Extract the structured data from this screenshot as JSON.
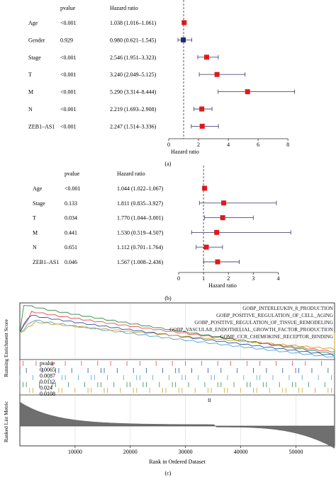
{
  "chart_data": [
    {
      "type": "forest",
      "panel_label": "(a)",
      "columns": [
        "pvalue",
        "Hazard ratio"
      ],
      "rows": [
        {
          "label": "Age",
          "pvalue": "<0.001",
          "hr_text": "1.038 (1.016–1.061)",
          "hr": 1.038,
          "lo": 1.016,
          "hi": 1.061,
          "color": "#e0191c"
        },
        {
          "label": "Gender",
          "pvalue": "0.929",
          "hr_text": "0.980 (0.621–1.545)",
          "hr": 0.98,
          "lo": 0.621,
          "hi": 1.545,
          "color": "#1b2a7a"
        },
        {
          "label": "Stage",
          "pvalue": "<0.001",
          "hr_text": "2.546 (1.951–3.323)",
          "hr": 2.546,
          "lo": 1.951,
          "hi": 3.323,
          "color": "#e0191c"
        },
        {
          "label": "T",
          "pvalue": "<0.001",
          "hr_text": "3.240 (2.049–5.125)",
          "hr": 3.24,
          "lo": 2.049,
          "hi": 5.125,
          "color": "#e0191c"
        },
        {
          "label": "M",
          "pvalue": "<0.001",
          "hr_text": "5.290 (3.314–8.444)",
          "hr": 5.29,
          "lo": 3.314,
          "hi": 8.444,
          "color": "#e0191c"
        },
        {
          "label": "N",
          "pvalue": "<0.001",
          "hr_text": "2.219 (1.693–2.908)",
          "hr": 2.219,
          "lo": 1.693,
          "hi": 2.908,
          "color": "#e0191c"
        },
        {
          "label": "ZEB1–AS1",
          "pvalue": "<0.001",
          "hr_text": "2.247 (1.514–3.336)",
          "hr": 2.247,
          "lo": 1.514,
          "hi": 3.336,
          "color": "#e0191c"
        }
      ],
      "xlim": [
        0,
        8.8
      ],
      "xticks": [
        0,
        2,
        4,
        6,
        8
      ],
      "ref_line": 1,
      "xlabel": "Hazard ratio"
    },
    {
      "type": "forest",
      "panel_label": "(b)",
      "columns": [
        "pvalue",
        "Hazard ratio"
      ],
      "rows": [
        {
          "label": "Age",
          "pvalue": "<0.001",
          "hr_text": "1.044 (1.022–1.067)",
          "hr": 1.044,
          "lo": 1.022,
          "hi": 1.067,
          "color": "#e0191c"
        },
        {
          "label": "Stage",
          "pvalue": "0.133",
          "hr_text": "1.811 (0.835–3.927)",
          "hr": 1.811,
          "lo": 0.835,
          "hi": 3.927,
          "color": "#e0191c"
        },
        {
          "label": "T",
          "pvalue": "0.034",
          "hr_text": "1.770 (1.044–3.001)",
          "hr": 1.77,
          "lo": 1.044,
          "hi": 3.001,
          "color": "#e0191c"
        },
        {
          "label": "M",
          "pvalue": "0.441",
          "hr_text": "1.530 (0.519–4.507)",
          "hr": 1.53,
          "lo": 0.519,
          "hi": 4.507,
          "color": "#e0191c"
        },
        {
          "label": "N",
          "pvalue": "0.651",
          "hr_text": "1.112 (0.701–1.764)",
          "hr": 1.112,
          "lo": 0.701,
          "hi": 1.764,
          "color": "#e0191c"
        },
        {
          "label": "ZEB1–AS1",
          "pvalue": "0.046",
          "hr_text": "1.567 (1.008–2.436)",
          "hr": 1.567,
          "lo": 1.008,
          "hi": 2.436,
          "color": "#e0191c"
        }
      ],
      "xlim": [
        0,
        4.5
      ],
      "xticks": [
        0,
        1,
        2,
        3,
        4
      ],
      "ref_line": 1,
      "xlabel": "Hazard ratio"
    },
    {
      "type": "gsea",
      "panel_label": "(c)",
      "ylabel_top": "Running Enrichment Score",
      "ylabel_bottom": "Ranked List Metric",
      "xlabel": "Rank in Ordered Dataset",
      "xlim": [
        0,
        57000
      ],
      "xticks": [
        10000,
        20000,
        30000,
        40000,
        50000
      ],
      "pvalue_header": "pvalue",
      "series": [
        {
          "name": "GOBP_INTERLEUKIN_8_PRODUCTION",
          "pvalue": "0.0065",
          "color": "#e8474a"
        },
        {
          "name": "GOBP_POSITIVE_REGULATION_OF_CELL_AGING",
          "pvalue": "0.0087",
          "color": "#2f4ea0"
        },
        {
          "name": "GOBP_POSITIVE_REGULATION_OF_TISSUE_REMODELING",
          "pvalue": "0.0112",
          "color": "#4aa3d8"
        },
        {
          "name": "GOBP_VASCULAR_ENDOTHELIAL_GROWTH_FACTOR_PRODUCTION",
          "pvalue": "0.024",
          "color": "#2f8a4a"
        },
        {
          "name": "GOMF_CCR_CHEMOKINE_RECEPTOR_BINDING",
          "pvalue": "0.0108",
          "color": "#c9a227"
        }
      ],
      "rug_marker_text": "II"
    }
  ]
}
